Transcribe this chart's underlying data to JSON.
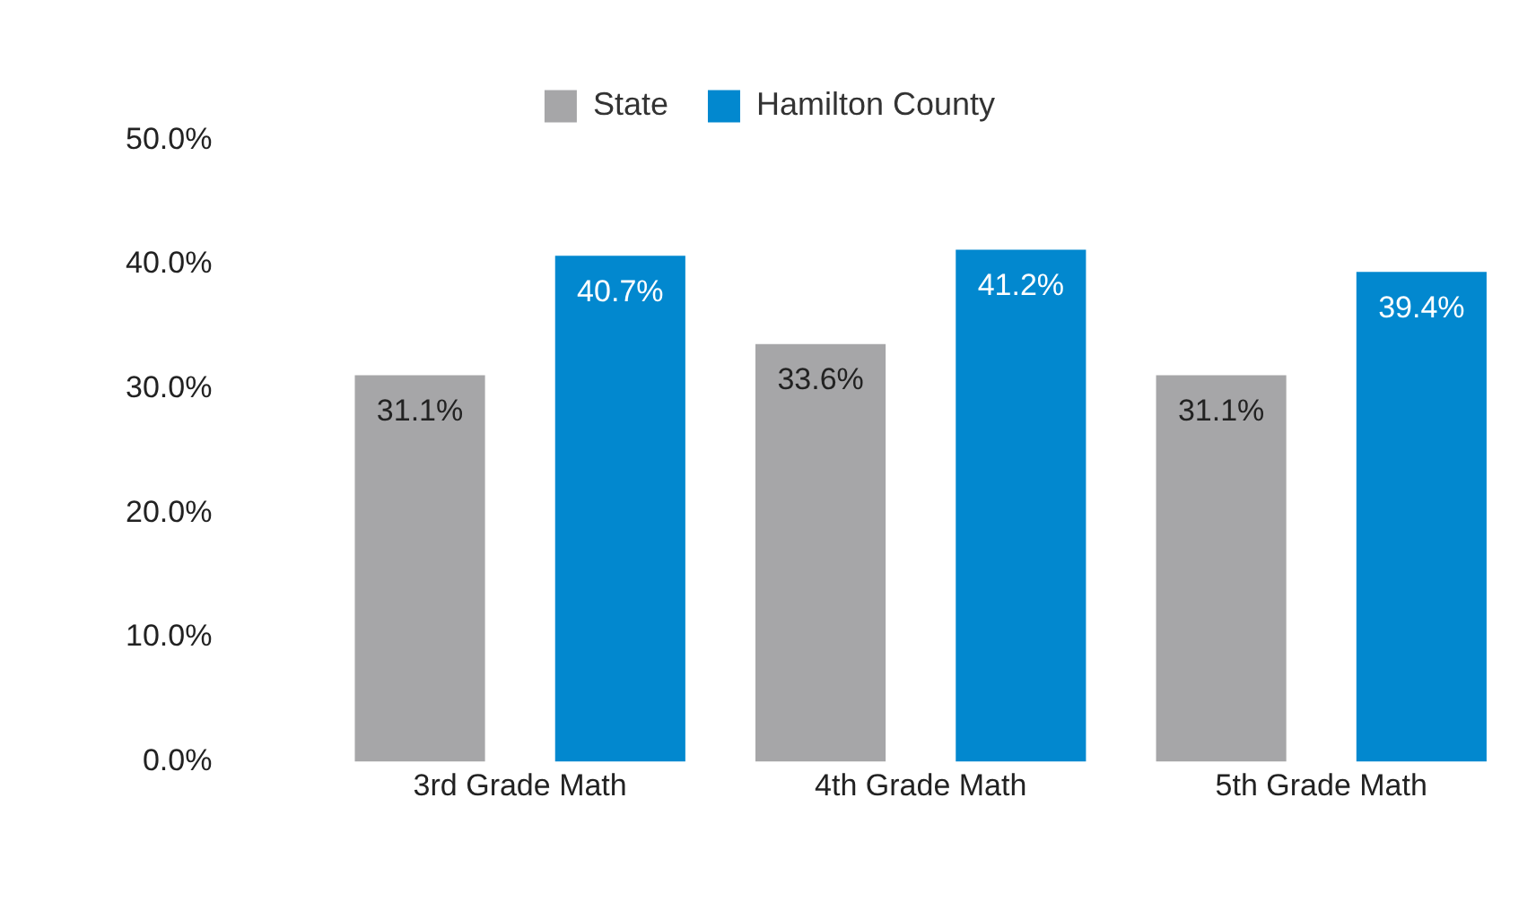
{
  "chart_data": {
    "type": "bar",
    "categories": [
      "3rd Grade Math",
      "4th Grade Math",
      "5th Grade Math"
    ],
    "series": [
      {
        "name": "State",
        "color": "#a6a6a8",
        "values": [
          31.1,
          33.6,
          31.1
        ],
        "value_labels": [
          "31.1%",
          "33.6%",
          "31.1%"
        ]
      },
      {
        "name": "Hamilton County",
        "color": "#0288cf",
        "values": [
          40.7,
          41.2,
          39.4
        ],
        "value_labels": [
          "40.7%",
          "41.2%",
          "39.4%"
        ]
      }
    ],
    "ylim": [
      0,
      50
    ],
    "yticks": [
      {
        "value": 0,
        "label": "0.0%"
      },
      {
        "value": 10,
        "label": "10.0%"
      },
      {
        "value": 20,
        "label": "20.0%"
      },
      {
        "value": 30,
        "label": "30.0%"
      },
      {
        "value": 40,
        "label": "40.0%"
      },
      {
        "value": 50,
        "label": "50.0%"
      }
    ],
    "grid": false,
    "legend": "top"
  }
}
